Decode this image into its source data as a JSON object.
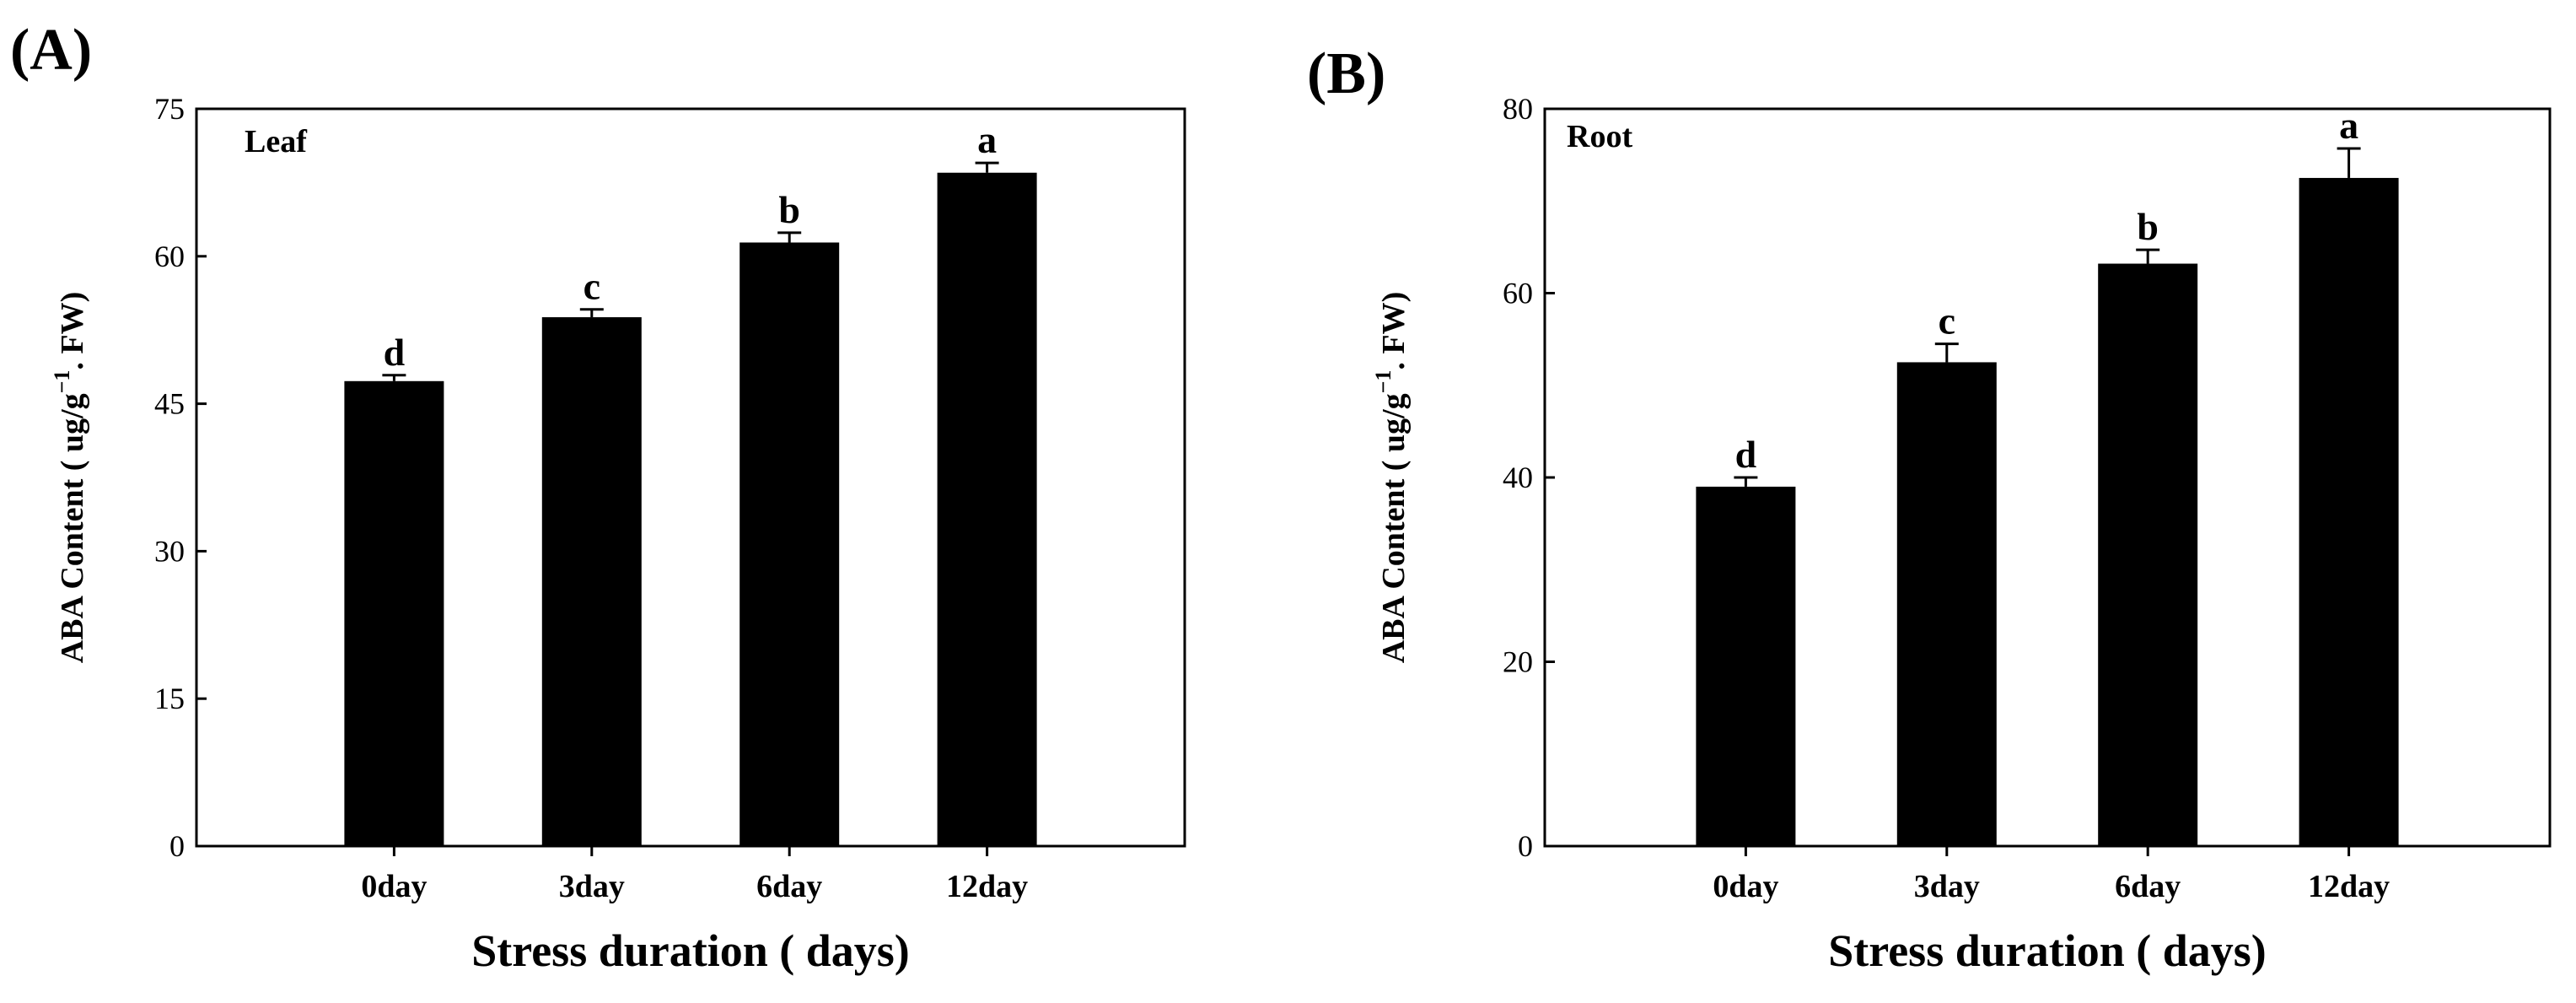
{
  "chart_data": [
    {
      "type": "bar",
      "panel_label": "(A)",
      "tissue_label": "Leaf",
      "categories": [
        "0day",
        "3day",
        "6day",
        "12day"
      ],
      "values": [
        47.3,
        53.8,
        61.4,
        68.5
      ],
      "errors": [
        0.6,
        0.8,
        1.0,
        1.0
      ],
      "significance": [
        "d",
        "c",
        "b",
        "a"
      ],
      "xlabel": "Stress duration ( days)",
      "ylabel": {
        "main": "ABA Content ( ug/g",
        "sup": "−1",
        "tail": ". FW)"
      },
      "ylim": [
        0,
        75
      ],
      "yticks": [
        0,
        15,
        30,
        45,
        60,
        75
      ],
      "color": "#000000"
    },
    {
      "type": "bar",
      "panel_label": "(B)",
      "tissue_label": "Root",
      "categories": [
        "0day",
        "3day",
        "6day",
        "12day"
      ],
      "values": [
        39.0,
        52.5,
        63.2,
        72.5
      ],
      "errors": [
        1.0,
        2.0,
        1.5,
        3.2
      ],
      "significance": [
        "d",
        "c",
        "b",
        "a"
      ],
      "xlabel": "Stress duration ( days)",
      "ylabel": {
        "main": "ABA Content ( ug/g",
        "sup": "−1",
        "tail": ". FW)"
      },
      "ylim": [
        0,
        80
      ],
      "yticks": [
        0,
        20,
        40,
        60,
        80
      ],
      "color": "#000000"
    }
  ]
}
